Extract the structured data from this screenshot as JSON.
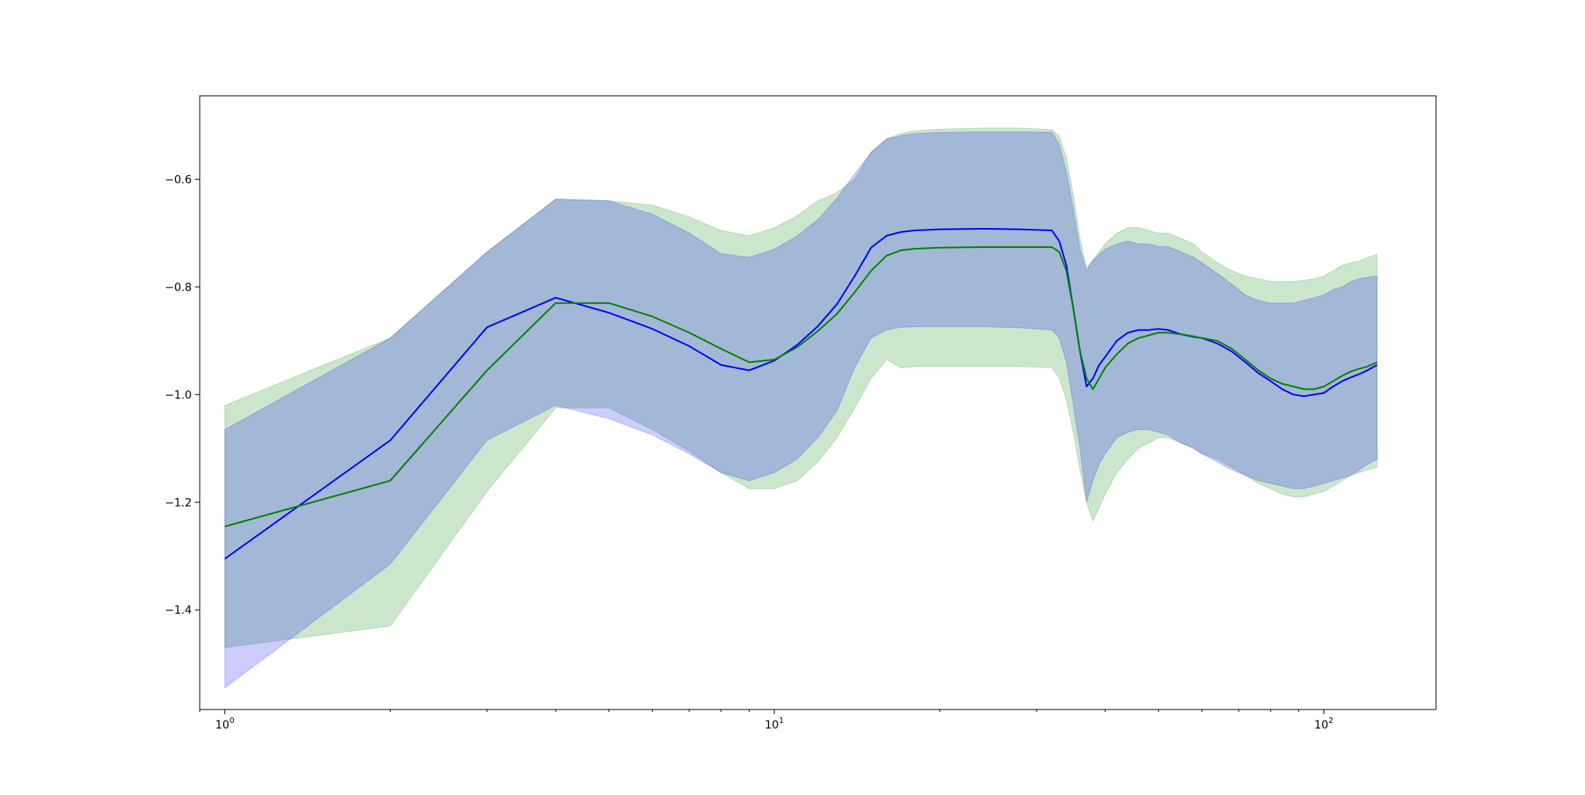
{
  "chart_data": {
    "type": "line",
    "title": "",
    "xlabel": "",
    "ylabel": "",
    "x_scale": "log",
    "xlim": [
      0.9,
      160
    ],
    "ylim": [
      -1.585,
      -0.445
    ],
    "grid": false,
    "legend": "none",
    "y_ticks": [
      -1.4,
      -1.2,
      -1.0,
      -0.8,
      -0.6
    ],
    "y_tick_labels": [
      "−1.4",
      "−1.2",
      "−1.0",
      "−0.8",
      "−0.6"
    ],
    "x_major_ticks": [
      1,
      10,
      100
    ],
    "x_tick_labels": [
      {
        "base": "10",
        "exp": "0"
      },
      {
        "base": "10",
        "exp": "1"
      },
      {
        "base": "10",
        "exp": "2"
      }
    ],
    "x_minor_ticks": [
      0.9,
      2,
      3,
      4,
      5,
      6,
      7,
      8,
      9,
      20,
      30,
      40,
      50,
      60,
      70,
      80,
      90
    ],
    "series": [
      {
        "color": "#0000ff",
        "band_color": "#0000ff",
        "band_opacity": 0.2,
        "x": [
          1,
          2,
          3,
          4,
          5,
          6,
          7,
          8,
          9,
          10,
          11,
          12,
          13,
          14,
          15,
          16,
          17,
          18,
          20,
          24,
          28,
          32,
          33,
          34,
          35,
          36,
          37,
          38,
          39,
          40,
          42,
          44,
          46,
          48,
          50,
          52,
          55,
          58,
          60,
          64,
          68,
          72,
          76,
          80,
          84,
          88,
          92,
          96,
          100,
          104,
          108,
          112,
          116,
          120,
          125
        ],
        "y": [
          -1.305,
          -1.085,
          -0.875,
          -0.82,
          -0.848,
          -0.878,
          -0.91,
          -0.945,
          -0.955,
          -0.937,
          -0.908,
          -0.873,
          -0.832,
          -0.78,
          -0.727,
          -0.705,
          -0.698,
          -0.695,
          -0.693,
          -0.692,
          -0.693,
          -0.695,
          -0.715,
          -0.76,
          -0.84,
          -0.92,
          -0.985,
          -0.97,
          -0.945,
          -0.93,
          -0.9,
          -0.885,
          -0.88,
          -0.88,
          -0.878,
          -0.88,
          -0.888,
          -0.893,
          -0.895,
          -0.905,
          -0.92,
          -0.94,
          -0.96,
          -0.975,
          -0.99,
          -1.0,
          -1.003,
          -1.0,
          -0.997,
          -0.985,
          -0.975,
          -0.968,
          -0.962,
          -0.955,
          -0.945
        ],
        "upper": [
          -1.065,
          -0.895,
          -0.735,
          -0.637,
          -0.64,
          -0.665,
          -0.7,
          -0.738,
          -0.745,
          -0.73,
          -0.705,
          -0.675,
          -0.635,
          -0.59,
          -0.55,
          -0.525,
          -0.519,
          -0.515,
          -0.513,
          -0.512,
          -0.512,
          -0.513,
          -0.535,
          -0.585,
          -0.655,
          -0.73,
          -0.77,
          -0.75,
          -0.74,
          -0.73,
          -0.72,
          -0.715,
          -0.72,
          -0.72,
          -0.725,
          -0.725,
          -0.735,
          -0.745,
          -0.755,
          -0.775,
          -0.795,
          -0.815,
          -0.825,
          -0.83,
          -0.83,
          -0.83,
          -0.825,
          -0.82,
          -0.815,
          -0.805,
          -0.8,
          -0.79,
          -0.785,
          -0.782,
          -0.78
        ],
        "lower": [
          -1.545,
          -1.315,
          -1.085,
          -1.02,
          -1.045,
          -1.075,
          -1.11,
          -1.145,
          -1.16,
          -1.145,
          -1.12,
          -1.08,
          -1.03,
          -0.95,
          -0.895,
          -0.88,
          -0.875,
          -0.874,
          -0.874,
          -0.874,
          -0.876,
          -0.88,
          -0.895,
          -0.94,
          -1.02,
          -1.1,
          -1.2,
          -1.16,
          -1.13,
          -1.11,
          -1.08,
          -1.07,
          -1.065,
          -1.065,
          -1.07,
          -1.075,
          -1.09,
          -1.1,
          -1.11,
          -1.125,
          -1.14,
          -1.15,
          -1.16,
          -1.165,
          -1.17,
          -1.175,
          -1.175,
          -1.17,
          -1.165,
          -1.16,
          -1.155,
          -1.15,
          -1.14,
          -1.13,
          -1.12
        ]
      },
      {
        "color": "#008000",
        "band_color": "#008000",
        "band_opacity": 0.2,
        "x": [
          1,
          2,
          3,
          4,
          5,
          6,
          7,
          8,
          9,
          10,
          11,
          12,
          13,
          14,
          15,
          16,
          17,
          18,
          20,
          24,
          28,
          32,
          33,
          34,
          35,
          36,
          37,
          38,
          39,
          40,
          42,
          44,
          46,
          48,
          50,
          52,
          55,
          58,
          60,
          64,
          68,
          72,
          76,
          80,
          84,
          88,
          92,
          96,
          100,
          104,
          108,
          112,
          116,
          120,
          125
        ],
        "y": [
          -1.245,
          -1.16,
          -0.955,
          -0.83,
          -0.83,
          -0.855,
          -0.885,
          -0.915,
          -0.94,
          -0.935,
          -0.912,
          -0.882,
          -0.85,
          -0.81,
          -0.77,
          -0.742,
          -0.732,
          -0.729,
          -0.727,
          -0.726,
          -0.726,
          -0.726,
          -0.735,
          -0.77,
          -0.84,
          -0.92,
          -0.97,
          -0.99,
          -0.97,
          -0.95,
          -0.925,
          -0.905,
          -0.895,
          -0.89,
          -0.885,
          -0.885,
          -0.888,
          -0.892,
          -0.895,
          -0.9,
          -0.915,
          -0.935,
          -0.955,
          -0.97,
          -0.98,
          -0.985,
          -0.99,
          -0.99,
          -0.985,
          -0.975,
          -0.965,
          -0.957,
          -0.952,
          -0.948,
          -0.94
        ],
        "upper": [
          -1.02,
          -0.895,
          -0.735,
          -0.637,
          -0.64,
          -0.648,
          -0.67,
          -0.695,
          -0.705,
          -0.69,
          -0.668,
          -0.64,
          -0.625,
          -0.6,
          -0.55,
          -0.525,
          -0.515,
          -0.51,
          -0.507,
          -0.505,
          -0.505,
          -0.508,
          -0.52,
          -0.56,
          -0.63,
          -0.71,
          -0.765,
          -0.75,
          -0.735,
          -0.72,
          -0.7,
          -0.69,
          -0.69,
          -0.695,
          -0.7,
          -0.7,
          -0.71,
          -0.72,
          -0.735,
          -0.755,
          -0.77,
          -0.78,
          -0.785,
          -0.79,
          -0.79,
          -0.79,
          -0.788,
          -0.785,
          -0.78,
          -0.77,
          -0.76,
          -0.755,
          -0.752,
          -0.745,
          -0.74
        ],
        "lower": [
          -1.47,
          -1.43,
          -1.18,
          -1.025,
          -1.025,
          -1.065,
          -1.105,
          -1.145,
          -1.175,
          -1.175,
          -1.16,
          -1.125,
          -1.08,
          -1.025,
          -0.97,
          -0.935,
          -0.95,
          -0.948,
          -0.948,
          -0.948,
          -0.948,
          -0.95,
          -0.97,
          -1.01,
          -1.07,
          -1.14,
          -1.2,
          -1.235,
          -1.21,
          -1.185,
          -1.145,
          -1.12,
          -1.1,
          -1.09,
          -1.08,
          -1.08,
          -1.09,
          -1.1,
          -1.11,
          -1.12,
          -1.135,
          -1.15,
          -1.165,
          -1.175,
          -1.185,
          -1.19,
          -1.19,
          -1.185,
          -1.18,
          -1.17,
          -1.16,
          -1.15,
          -1.145,
          -1.14,
          -1.135
        ]
      }
    ]
  }
}
